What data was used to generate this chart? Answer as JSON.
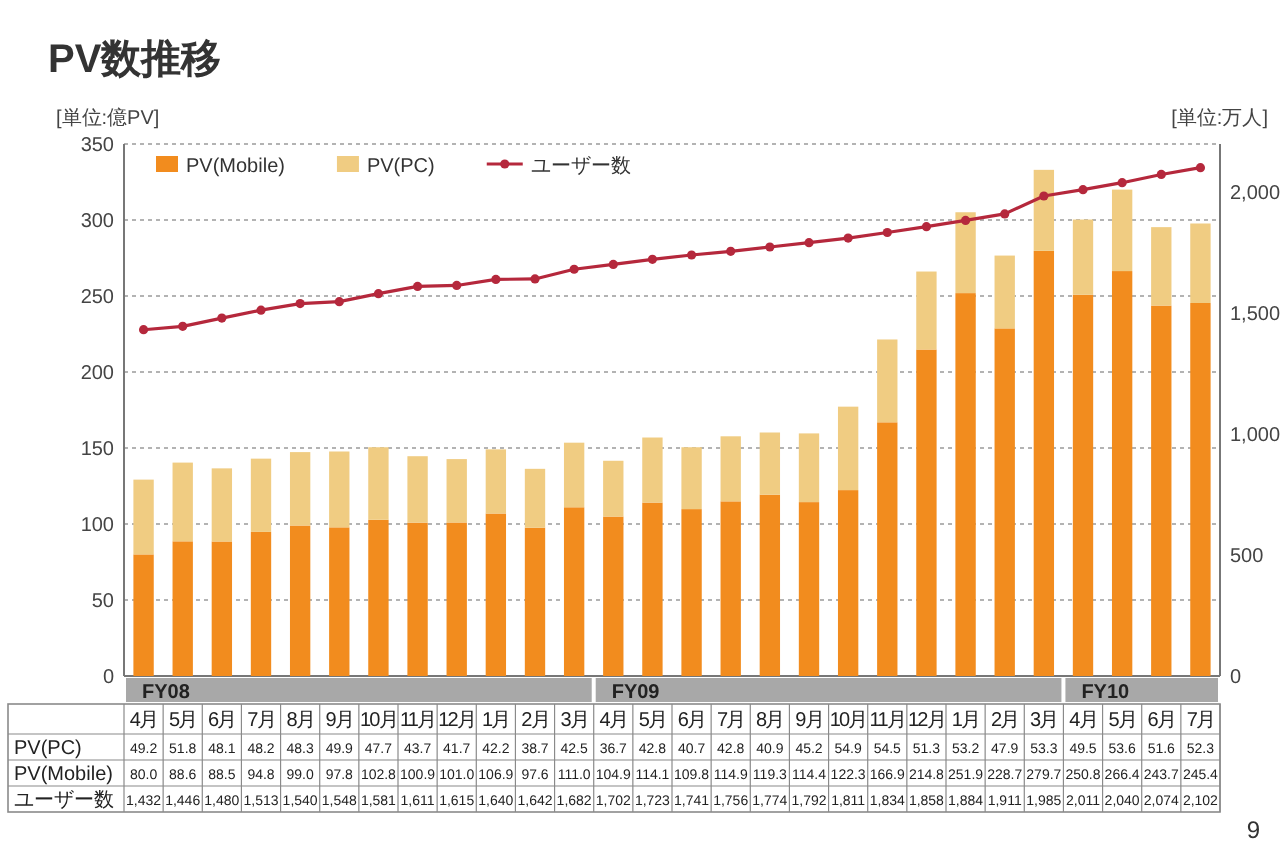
{
  "chart_data": {
    "type": "bar",
    "stacked": true,
    "title": "PV数推移",
    "ylabel": "[単位:億PV]",
    "y2label": "[単位:万人]",
    "categories": [
      "4月",
      "5月",
      "6月",
      "7月",
      "8月",
      "9月",
      "10月",
      "11月",
      "12月",
      "1月",
      "2月",
      "3月",
      "4月",
      "5月",
      "6月",
      "7月",
      "8月",
      "9月",
      "10月",
      "11月",
      "12月",
      "1月",
      "2月",
      "3月",
      "4月",
      "5月",
      "6月",
      "7月"
    ],
    "series": [
      {
        "name": "PV(Mobile)",
        "color": "#f28c1e",
        "values": [
          80.0,
          88.6,
          88.5,
          94.8,
          99.0,
          97.8,
          102.8,
          100.9,
          101.0,
          106.9,
          97.6,
          111.0,
          104.9,
          114.1,
          109.8,
          114.9,
          119.3,
          114.4,
          122.3,
          166.9,
          214.8,
          251.9,
          228.7,
          279.7,
          250.8,
          266.4,
          243.7,
          245.4
        ],
        "value_labels": [
          "80.0",
          "88.6",
          "88.5",
          "94.8",
          "99.0",
          "97.8",
          "102.8",
          "100.9",
          "101.0",
          "106.9",
          "97.6",
          "111.0",
          "104.9",
          "114.1",
          "109.8",
          "114.9",
          "119.3",
          "114.4",
          "122.3",
          "166.9",
          "214.8",
          "251.9",
          "228.7",
          "279.7",
          "250.8",
          "266.4",
          "243.7",
          "245.4"
        ]
      },
      {
        "name": "PV(PC)",
        "color": "#f0cc82",
        "values": [
          49.2,
          51.8,
          48.1,
          48.2,
          48.3,
          49.9,
          47.7,
          43.7,
          41.7,
          42.2,
          38.7,
          42.5,
          36.7,
          42.8,
          40.7,
          42.8,
          40.9,
          45.2,
          54.9,
          54.5,
          51.3,
          53.2,
          47.9,
          53.3,
          49.5,
          53.6,
          51.6,
          52.3
        ],
        "value_labels": [
          "49.2",
          "51.8",
          "48.1",
          "48.2",
          "48.3",
          "49.9",
          "47.7",
          "43.7",
          "41.7",
          "42.2",
          "38.7",
          "42.5",
          "36.7",
          "42.8",
          "40.7",
          "42.8",
          "40.9",
          "45.2",
          "54.9",
          "54.5",
          "51.3",
          "53.2",
          "47.9",
          "53.3",
          "49.5",
          "53.6",
          "51.6",
          "52.3"
        ]
      },
      {
        "name": "ユーザー数",
        "type": "line",
        "axis": "y2",
        "color": "#b5283c",
        "marker": "circle",
        "values": [
          1432,
          1446,
          1480,
          1513,
          1540,
          1548,
          1581,
          1611,
          1615,
          1640,
          1642,
          1682,
          1702,
          1723,
          1741,
          1756,
          1774,
          1792,
          1811,
          1834,
          1858,
          1884,
          1911,
          1985,
          2011,
          2040,
          2074,
          2102
        ],
        "value_labels": [
          "1,432",
          "1,446",
          "1,480",
          "1,513",
          "1,540",
          "1,548",
          "1,581",
          "1,611",
          "1,615",
          "1,640",
          "1,642",
          "1,682",
          "1,702",
          "1,723",
          "1,741",
          "1,756",
          "1,774",
          "1,792",
          "1,811",
          "1,834",
          "1,858",
          "1,884",
          "1,911",
          "1,985",
          "2,011",
          "2,040",
          "2,074",
          "2,102"
        ]
      }
    ],
    "ylim": [
      0,
      350
    ],
    "yticks": [
      0,
      50,
      100,
      150,
      200,
      250,
      300,
      350
    ],
    "y2lim": [
      0,
      2200
    ],
    "y2ticks": [
      0,
      500,
      {
        "value": 1000,
        "label": "1,000"
      },
      {
        "value": 1500,
        "label": "1,500"
      },
      {
        "value": 2000,
        "label": "2,000"
      }
    ],
    "grid": "y",
    "legend": "top left",
    "annotations": [
      "FY08",
      "FY09",
      "FY10",
      "9"
    ]
  }
}
